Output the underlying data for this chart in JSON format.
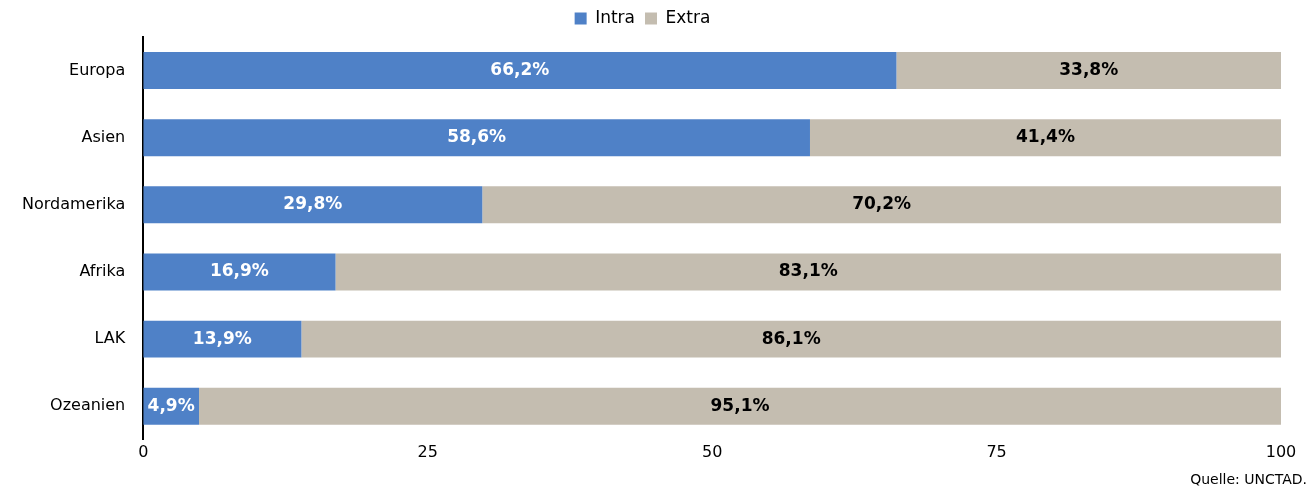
{
  "chart_data": {
    "type": "bar",
    "orientation": "horizontal",
    "stacked": true,
    "categories": [
      "Europa",
      "Asien",
      "Nordamerika",
      "Afrika",
      "LAK",
      "Ozeanien"
    ],
    "series": [
      {
        "name": "Intra",
        "color": "#4f81c7",
        "values": [
          66.2,
          58.6,
          29.8,
          16.9,
          13.9,
          4.9
        ],
        "value_labels": [
          "66,2%",
          "58,6%",
          "29,8%",
          "16,9%",
          "13,9%",
          "4,9%"
        ]
      },
      {
        "name": "Extra",
        "color": "#c4bdb0",
        "values": [
          33.8,
          41.4,
          70.2,
          83.1,
          86.1,
          95.1
        ],
        "value_labels": [
          "33,8%",
          "41,4%",
          "70,2%",
          "83,1%",
          "86,1%",
          "95,1%"
        ]
      }
    ],
    "xlim": [
      0,
      100
    ],
    "xticks": [
      0,
      25,
      50,
      75,
      100
    ],
    "grid": false,
    "legend": "top",
    "annotations": [
      "Quelle: UNCTAD."
    ]
  }
}
